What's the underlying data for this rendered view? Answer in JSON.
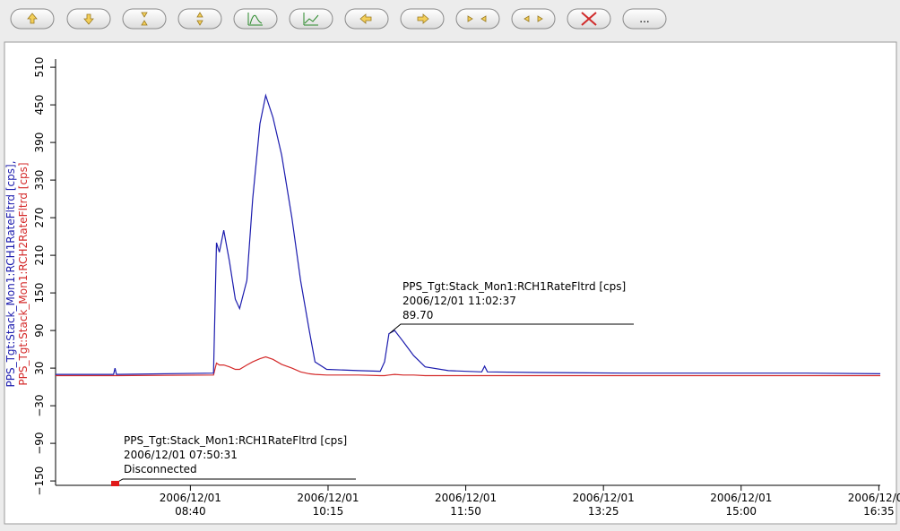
{
  "toolbar": {
    "more": "..."
  },
  "chart_data": {
    "type": "line",
    "ylabel": [
      "PPS_Tgt:Stack_Mon1:RCH1RateFltrd [cps],",
      "PPS_Tgt:Stack_Mon1:RCH2RateFltrd [cps]"
    ],
    "x": [
      "2006/12/01 07:07",
      "2006/12/01 07:47",
      "2006/12/01 07:48",
      "2006/12/01 07:49",
      "2006/12/01 08:56",
      "2006/12/01 08:58",
      "2006/12/01 09:00",
      "2006/12/01 09:03",
      "2006/12/01 09:07",
      "2006/12/01 09:11",
      "2006/12/01 09:14",
      "2006/12/01 09:19",
      "2006/12/01 09:23",
      "2006/12/01 09:28",
      "2006/12/01 09:32",
      "2006/12/01 09:37",
      "2006/12/01 09:43",
      "2006/12/01 09:50",
      "2006/12/01 09:56",
      "2006/12/01 10:02",
      "2006/12/01 10:06",
      "2006/12/01 10:14",
      "2006/12/01 10:36",
      "2006/12/01 10:51",
      "2006/12/01 10:54",
      "2006/12/01 10:57",
      "2006/12/01 11:01",
      "2006/12/01 11:07",
      "2006/12/01 11:14",
      "2006/12/01 11:22",
      "2006/12/01 11:38",
      "2006/12/01 12:01",
      "2006/12/01 12:03",
      "2006/12/01 12:05",
      "2006/12/01 12:40",
      "2006/12/01 13:41",
      "2006/12/01 14:43",
      "2006/12/01 15:45",
      "2006/12/01 16:36"
    ],
    "series": [
      {
        "color": "#1c1cae",
        "values": [
          20,
          20,
          30,
          20,
          22,
          230,
          215,
          250,
          200,
          140,
          125,
          170,
          300,
          420,
          465,
          430,
          370,
          270,
          170,
          90,
          40,
          28,
          26,
          25,
          40,
          85,
          90,
          72,
          50,
          32,
          26,
          24,
          33,
          24,
          23,
          22,
          22,
          22,
          21
        ]
      },
      {
        "color": "#d42a2a",
        "values": [
          18,
          18,
          18,
          18,
          19,
          38,
          35,
          35,
          32,
          28,
          28,
          35,
          40,
          45,
          48,
          44,
          36,
          30,
          24,
          21,
          20,
          19,
          19,
          18,
          18,
          19,
          20,
          19,
          19,
          18,
          18,
          18,
          18,
          18,
          18,
          18,
          18,
          18,
          18
        ]
      }
    ],
    "xlim": [
      "2006/12/01 07:07",
      "2006/12/01 16:36"
    ],
    "xticks": [
      "2006/12/01 08:40",
      "2006/12/01 10:15",
      "2006/12/01 11:50",
      "2006/12/01 13:25",
      "2006/12/01 15:00",
      "2006/12/01 16:35"
    ],
    "ylim": [
      -157,
      523
    ],
    "yticks": [
      {
        "value": -150,
        "label": "−150"
      },
      {
        "value": -90,
        "label": "−90"
      },
      {
        "value": -30,
        "label": "−30"
      },
      30,
      90,
      150,
      210,
      270,
      330,
      390,
      450,
      510
    ],
    "annotations": [
      {
        "lines": [
          "PPS_Tgt:Stack_Mon1:RCH1RateFltrd [cps]",
          "2006/12/01 11:02:37",
          "89.70"
        ]
      },
      {
        "lines": [
          "PPS_Tgt:Stack_Mon1:RCH1RateFltrd [cps]",
          "2006/12/01 07:50:31",
          "Disconnected"
        ]
      }
    ]
  }
}
